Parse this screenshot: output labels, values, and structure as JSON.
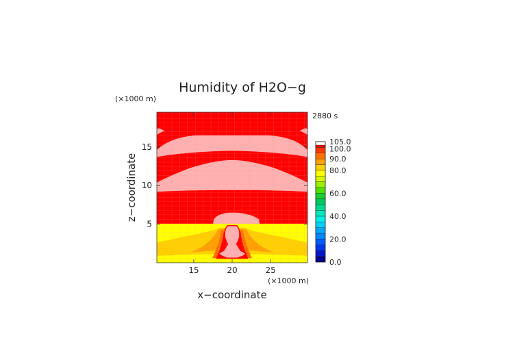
{
  "chart_data": {
    "type": "heatmap",
    "title": "Humidity of H2O−g",
    "time_label": "2880 s",
    "xlabel": "x−coordinate",
    "ylabel": "z−coordinate",
    "x_unit": "(×1000 m)",
    "y_unit": "(×1000 m)",
    "xlim": [
      10.2,
      29.8
    ],
    "ylim": [
      0,
      19.5
    ],
    "x_ticks": [
      {
        "value": 15,
        "label": "15"
      },
      {
        "value": 20,
        "label": "20"
      },
      {
        "value": 25,
        "label": "25"
      }
    ],
    "y_ticks": [
      {
        "value": 5,
        "label": "5"
      },
      {
        "value": 10,
        "label": "10"
      },
      {
        "value": 15,
        "label": "15"
      }
    ],
    "colorbar": {
      "levels": [
        {
          "from": 0,
          "to": 5,
          "color": "#00008b"
        },
        {
          "from": 5,
          "to": 10,
          "color": "#0018c8"
        },
        {
          "from": 10,
          "to": 15,
          "color": "#0038f0"
        },
        {
          "from": 15,
          "to": 20,
          "color": "#005cff"
        },
        {
          "from": 20,
          "to": 25,
          "color": "#0084ff"
        },
        {
          "from": 25,
          "to": 30,
          "color": "#00a8ff"
        },
        {
          "from": 30,
          "to": 35,
          "color": "#00d0f8"
        },
        {
          "from": 35,
          "to": 40,
          "color": "#00f0e8"
        },
        {
          "from": 40,
          "to": 45,
          "color": "#00e8c0"
        },
        {
          "from": 45,
          "to": 50,
          "color": "#00d890"
        },
        {
          "from": 50,
          "to": 55,
          "color": "#00c860"
        },
        {
          "from": 55,
          "to": 60,
          "color": "#18d030"
        },
        {
          "from": 60,
          "to": 65,
          "color": "#50e000"
        },
        {
          "from": 65,
          "to": 70,
          "color": "#98f000"
        },
        {
          "from": 70,
          "to": 75,
          "color": "#d8f800"
        },
        {
          "from": 75,
          "to": 80,
          "color": "#ffff00"
        },
        {
          "from": 80,
          "to": 85,
          "color": "#ffd000"
        },
        {
          "from": 85,
          "to": 90,
          "color": "#ffa000"
        },
        {
          "from": 90,
          "to": 95,
          "color": "#ff7000"
        },
        {
          "from": 95,
          "to": 100,
          "color": "#ff3800"
        },
        {
          "from": 100,
          "to": 102,
          "color": "#ff0000"
        },
        {
          "from": 102,
          "to": 105,
          "color": "#ffffff"
        }
      ],
      "labels": [
        {
          "value": 0,
          "label": "0.0"
        },
        {
          "value": 20,
          "label": "20.0"
        },
        {
          "value": 40,
          "label": "40.0"
        },
        {
          "value": 60,
          "label": "60.0"
        },
        {
          "value": 80,
          "label": "80.0"
        },
        {
          "value": 90,
          "label": "90.0"
        },
        {
          "value": 100,
          "label": "100.0"
        },
        {
          "value": 105,
          "label": "105.0"
        }
      ]
    },
    "fill_colors": {
      "saturated": "#ff0000",
      "over_saturated": "#ffb0b0",
      "band_90": "#ff7000",
      "band_85": "#ffa000",
      "band_80": "#ffd000",
      "band_75": "#ffff00",
      "grid": "#ff9a9a"
    },
    "regions": [
      {
        "name": "upper-cloud-layer",
        "value": 101,
        "x_range": [
          10.2,
          29.8
        ],
        "z_range": [
          13.7,
          16.6
        ]
      },
      {
        "name": "middle-cloud-layer",
        "value": 101,
        "x_range": [
          10.2,
          29.8
        ],
        "z_range": [
          9.2,
          13.3
        ]
      },
      {
        "name": "cloud-top-cap",
        "value": 101,
        "x_range": [
          17.5,
          23.6
        ],
        "z_range": [
          4.9,
          6.5
        ]
      },
      {
        "name": "convective-plume",
        "value": 101,
        "x_range": [
          18.0,
          21.6
        ],
        "z_range": [
          0.5,
          4.9
        ]
      },
      {
        "name": "lower-boundary-layer",
        "value": 80,
        "x_range": [
          10.2,
          29.8
        ],
        "z_range": [
          0,
          4.9
        ]
      }
    ]
  }
}
